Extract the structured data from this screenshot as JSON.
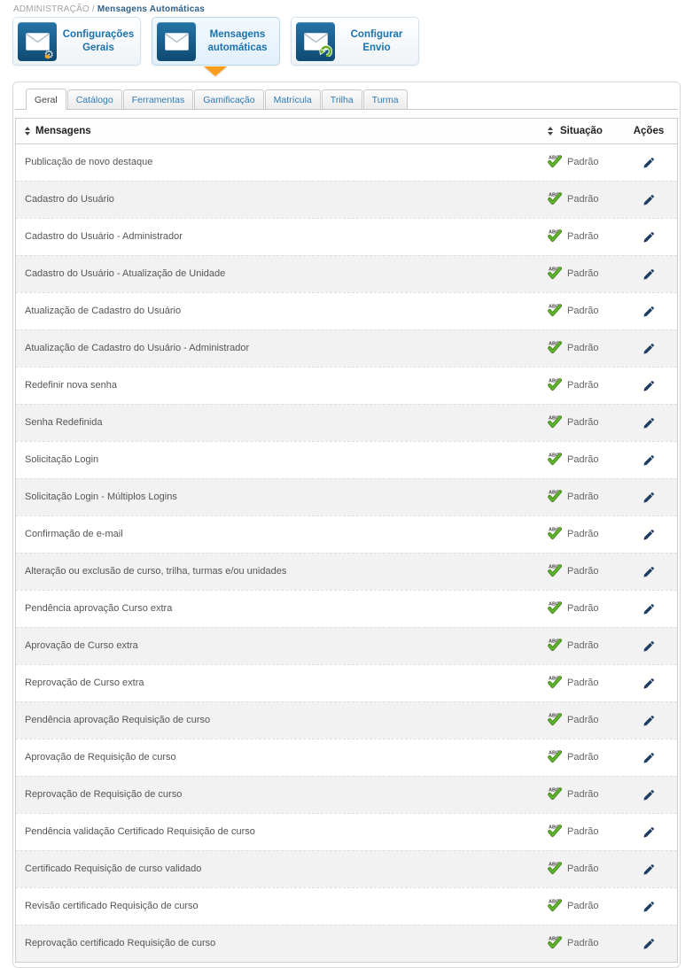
{
  "breadcrumb": {
    "section": "ADMINISTRAÇÃO /",
    "current": "Mensagens Automáticas"
  },
  "cards": [
    {
      "label": "Configurações Gerais",
      "icon": "envelope-wrench-icon"
    },
    {
      "label": "Mensagens automáticas",
      "icon": "envelope-icon",
      "active": true
    },
    {
      "label": "Configurar Envio",
      "icon": "envelope-arrow-icon"
    }
  ],
  "tabs": [
    {
      "label": "Geral",
      "active": true
    },
    {
      "label": "Catálogo"
    },
    {
      "label": "Ferramentas"
    },
    {
      "label": "Gamificação"
    },
    {
      "label": "Matrícula"
    },
    {
      "label": "Trilha"
    },
    {
      "label": "Turma"
    }
  ],
  "table": {
    "headers": {
      "messages": "Mensagens",
      "status": "Situação",
      "actions": "Ações"
    },
    "rows": [
      {
        "message": "Publicação de novo destaque",
        "status": "Padrão"
      },
      {
        "message": "Cadastro do Usuário",
        "status": "Padrão"
      },
      {
        "message": "Cadastro do Usuário - Administrador",
        "status": "Padrão"
      },
      {
        "message": "Cadastro do Usuário - Atualização de Unidade",
        "status": "Padrão"
      },
      {
        "message": "Atualização de Cadastro do Usuário",
        "status": "Padrão"
      },
      {
        "message": "Atualização de Cadastro do Usuário - Administrador",
        "status": "Padrão"
      },
      {
        "message": "Redefinir nova senha",
        "status": "Padrão"
      },
      {
        "message": "Senha Redefinida",
        "status": "Padrão"
      },
      {
        "message": "Solicitação Login",
        "status": "Padrão"
      },
      {
        "message": "Solicitação Login - Múltiplos Logins",
        "status": "Padrão"
      },
      {
        "message": "Confirmação de e-mail",
        "status": "Padrão"
      },
      {
        "message": "Alteração ou exclusão de curso, trilha, turmas e/ou unidades",
        "status": "Padrão"
      },
      {
        "message": "Pendência aprovação Curso extra",
        "status": "Padrão"
      },
      {
        "message": "Aprovação de Curso extra",
        "status": "Padrão"
      },
      {
        "message": "Reprovação de Curso extra",
        "status": "Padrão"
      },
      {
        "message": "Pendência aprovação Requisição de curso",
        "status": "Padrão"
      },
      {
        "message": "Aprovação de Requisição de curso",
        "status": "Padrão"
      },
      {
        "message": "Reprovação de Requisição de curso",
        "status": "Padrão"
      },
      {
        "message": "Pendência validação Certificado Requisição de curso",
        "status": "Padrão"
      },
      {
        "message": "Certificado Requisição de curso validado",
        "status": "Padrão"
      },
      {
        "message": "Revisão certificado Requisição de curso",
        "status": "Padrão"
      },
      {
        "message": "Reprovação certificado Requisição de curso",
        "status": "Padrão"
      }
    ]
  },
  "colors": {
    "accent_blue": "#1b72ad",
    "tile_blue_top": "#2474a7",
    "tile_blue_bottom": "#0f4a72",
    "pointer_orange": "#fb9d1c",
    "status_green": "#52a81d",
    "pencil_navy": "#1e3d5f",
    "row_alt_bg": "#f2f2f2"
  }
}
